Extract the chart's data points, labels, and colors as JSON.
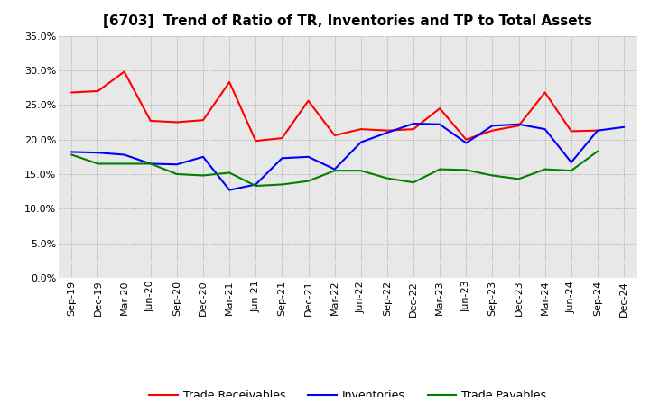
{
  "title": "[6703]  Trend of Ratio of TR, Inventories and TP to Total Assets",
  "x_labels": [
    "Sep-19",
    "Dec-19",
    "Mar-20",
    "Jun-20",
    "Sep-20",
    "Dec-20",
    "Mar-21",
    "Jun-21",
    "Sep-21",
    "Dec-21",
    "Mar-22",
    "Jun-22",
    "Sep-22",
    "Dec-22",
    "Mar-23",
    "Jun-23",
    "Sep-23",
    "Dec-23",
    "Mar-24",
    "Jun-24",
    "Sep-24",
    "Dec-24"
  ],
  "trade_receivables": [
    0.268,
    0.27,
    0.298,
    0.227,
    0.225,
    0.228,
    0.283,
    0.198,
    0.202,
    0.256,
    0.206,
    0.215,
    0.213,
    0.215,
    0.245,
    0.2,
    0.213,
    0.22,
    0.268,
    0.212,
    0.213,
    null
  ],
  "inventories": [
    0.182,
    0.181,
    0.178,
    0.165,
    0.164,
    0.175,
    0.127,
    0.135,
    0.173,
    0.175,
    0.157,
    0.196,
    0.21,
    0.223,
    0.222,
    0.195,
    0.22,
    0.222,
    0.215,
    0.167,
    0.213,
    0.218
  ],
  "trade_payables": [
    0.178,
    0.165,
    0.165,
    0.165,
    0.15,
    0.148,
    0.152,
    0.133,
    0.135,
    0.14,
    0.155,
    0.155,
    0.144,
    0.138,
    0.157,
    0.156,
    0.148,
    0.143,
    0.157,
    0.155,
    0.183,
    null
  ],
  "tr_color": "#ff0000",
  "inv_color": "#0000ff",
  "tp_color": "#008000",
  "ylim": [
    0.0,
    0.35
  ],
  "yticks": [
    0.0,
    0.05,
    0.1,
    0.15,
    0.2,
    0.25,
    0.3,
    0.35
  ],
  "background_color": "#ffffff",
  "plot_bg_color": "#e8e8e8",
  "grid_color": "#888888",
  "title_fontsize": 11,
  "legend_fontsize": 9,
  "tick_fontsize": 8
}
